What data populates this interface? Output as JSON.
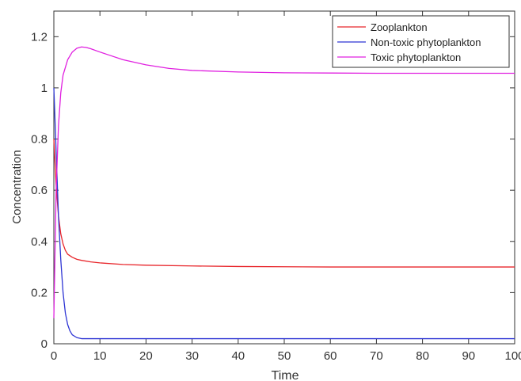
{
  "chart_data": {
    "type": "line",
    "xlabel": "Time",
    "ylabel": "Concentration",
    "xlim": [
      0,
      100
    ],
    "ylim": [
      0,
      1.3
    ],
    "xticks": [
      0,
      10,
      20,
      30,
      40,
      50,
      60,
      70,
      80,
      90,
      100
    ],
    "yticks": [
      0,
      0.2,
      0.4,
      0.6,
      0.8,
      1,
      1.2
    ],
    "xtick_labels": [
      "0",
      "10",
      "20",
      "30",
      "40",
      "50",
      "60",
      "70",
      "80",
      "90",
      "100"
    ],
    "ytick_labels": [
      "0",
      "0.2",
      "0.4",
      "0.6",
      "0.8",
      "1",
      "1.2"
    ],
    "grid": false,
    "legend_position": "top-right",
    "series": [
      {
        "name": "Zooplankton",
        "color": "#e8262b",
        "x": [
          0,
          0.5,
          1,
          1.5,
          2,
          2.5,
          3,
          4,
          5,
          6,
          8,
          10,
          15,
          20,
          30,
          40,
          50,
          60,
          70,
          80,
          90,
          100
        ],
        "y": [
          0.8,
          0.62,
          0.5,
          0.43,
          0.39,
          0.365,
          0.35,
          0.338,
          0.33,
          0.326,
          0.32,
          0.316,
          0.31,
          0.307,
          0.304,
          0.302,
          0.301,
          0.3,
          0.3,
          0.3,
          0.3,
          0.3
        ]
      },
      {
        "name": "Non-toxic phytoplankton",
        "color": "#2e35d4",
        "x": [
          0,
          0.5,
          1,
          1.5,
          2,
          2.5,
          3,
          3.5,
          4,
          5,
          6,
          8,
          10,
          15,
          20,
          30,
          40,
          50,
          60,
          70,
          80,
          90,
          100
        ],
        "y": [
          1.0,
          0.75,
          0.5,
          0.33,
          0.2,
          0.12,
          0.075,
          0.05,
          0.035,
          0.024,
          0.02,
          0.02,
          0.02,
          0.02,
          0.02,
          0.02,
          0.02,
          0.02,
          0.02,
          0.02,
          0.02,
          0.02,
          0.02
        ]
      },
      {
        "name": "Toxic phytoplankton",
        "color": "#e020e0",
        "x": [
          0,
          0.25,
          0.5,
          1,
          1.5,
          2,
          3,
          4,
          5,
          6,
          7,
          8,
          10,
          12,
          15,
          20,
          25,
          30,
          40,
          50,
          60,
          70,
          80,
          90,
          100
        ],
        "y": [
          0.1,
          0.35,
          0.6,
          0.85,
          0.98,
          1.05,
          1.11,
          1.14,
          1.155,
          1.16,
          1.158,
          1.153,
          1.14,
          1.128,
          1.11,
          1.09,
          1.076,
          1.068,
          1.062,
          1.059,
          1.058,
          1.057,
          1.057,
          1.057,
          1.057
        ]
      }
    ]
  }
}
